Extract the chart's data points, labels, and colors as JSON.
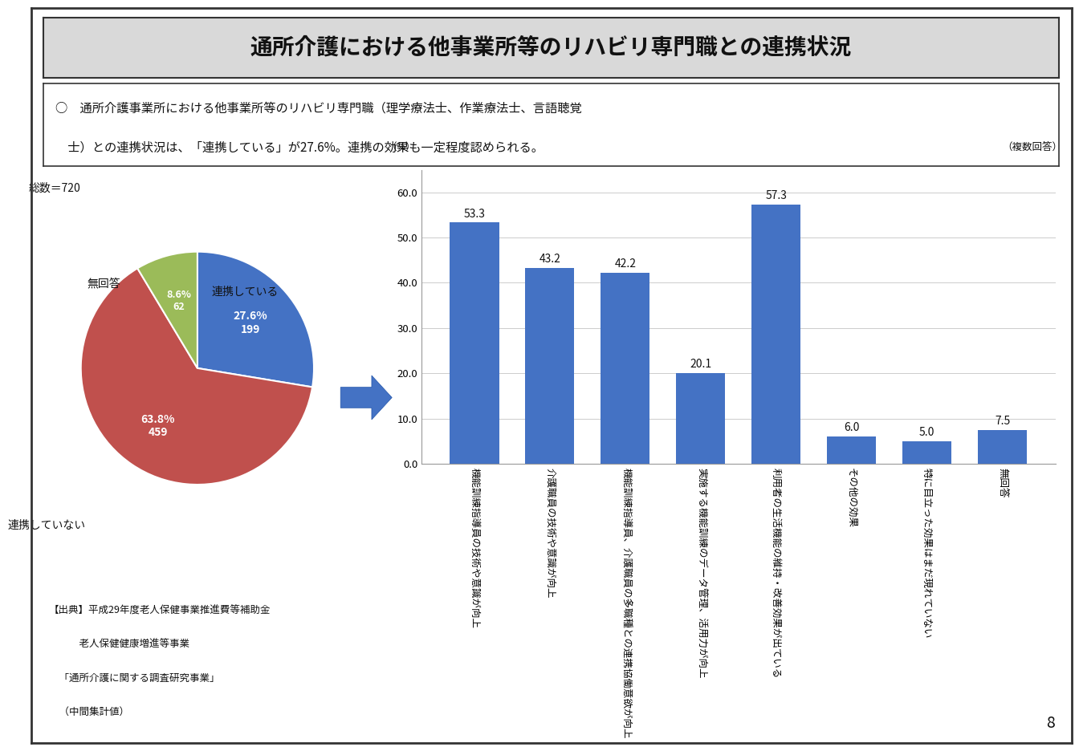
{
  "title": "通所介護における他事業所等のリハビリ専門職との連携状況",
  "subtitle_line1": "○　通所介護事業所における他事業所等のリハビリ専門職（理学療法士、作業療法士、言語聴覚",
  "subtitle_line2": "　士）との連携状況は、「連携している」が27.6%。連携の効果も一定程度認められる。",
  "pie_total": "総数＝720",
  "pie_label_connected": "連携している",
  "pie_label_not_connected": "連携していない",
  "pie_label_no_answer": "無回答",
  "pie_values": [
    27.6,
    63.8,
    8.6
  ],
  "pie_counts": [
    199,
    459,
    62
  ],
  "pie_colors": [
    "#4472C4",
    "#C0504D",
    "#9BBB59"
  ],
  "bar_values": [
    53.3,
    43.2,
    42.2,
    20.1,
    57.3,
    6.0,
    5.0,
    7.5
  ],
  "bar_color": "#4472C4",
  "bar_labels": [
    "機能訓練指導員の技術や意識が向上",
    "介護職員の技術や意識が向上",
    "機能訓練指導員、介護職員の多職種との連携協働意欲が向上",
    "実施する機能訓練のデータ管理、活用力が向上",
    "利用者の生活機能の維持・改善効果が出ている",
    "その他の効果",
    "特に目立った効果はまだ現れていない",
    "無回答"
  ],
  "bar_ylim": [
    0,
    65
  ],
  "bar_yticks": [
    0.0,
    10.0,
    20.0,
    30.0,
    40.0,
    50.0,
    60.0
  ],
  "bar_ylabel": "（%）",
  "multiple_answer": "（複数回答）",
  "footnote_line1": "【出典】平成29年度老人保健事業推進費等補助金",
  "footnote_line2": "　　　老人保健健康増進等事業",
  "footnote_line3": "　「通所介護に関する調査研究事業」",
  "footnote_line4": "　（中間集計値）",
  "page_number": "8",
  "bg_color": "#FFFFFF",
  "title_bg_color": "#D9D9D9",
  "border_color": "#333333",
  "arrow_color": "#4472C4"
}
